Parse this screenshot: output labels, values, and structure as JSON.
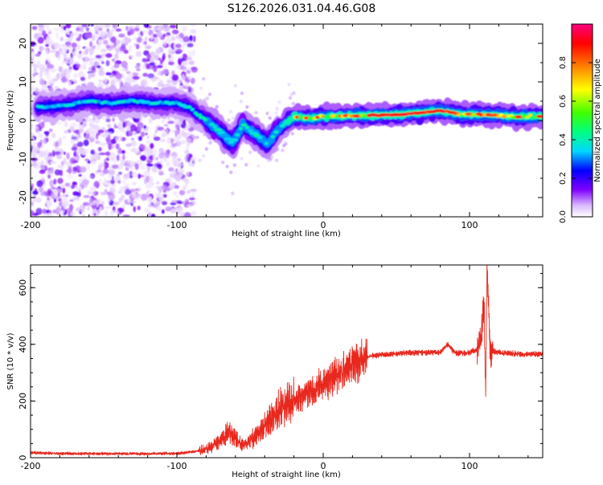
{
  "figure": {
    "title": "S126.2026.031.04.46.G08"
  },
  "chart_data": [
    {
      "type": "heatmap",
      "title": "S126.2026.031.04.46.G08",
      "xlabel": "Height of straight line (km)",
      "ylabel": "Frequency (Hz)",
      "xlim": [
        -200,
        150
      ],
      "ylim": [
        -25,
        25
      ],
      "xticks": [
        -200,
        -100,
        0,
        100
      ],
      "yticks": [
        -20,
        -10,
        0,
        10,
        20
      ],
      "colorbar": {
        "label": "Normalized spectral amplitude",
        "range": [
          0,
          1
        ],
        "ticks": [
          "0.0",
          "0.2",
          "0.4",
          "0.6",
          "0.8"
        ],
        "colors": [
          "#ffffff",
          "#d8b8ff",
          "#8000ff",
          "#0000ff",
          "#00d8ff",
          "#00ff80",
          "#40ff00",
          "#ffff00",
          "#ff8000",
          "#ff0000",
          "#ff0080"
        ]
      },
      "dominant_frequency_trace": [
        {
          "x": -190,
          "y": 3.5
        },
        {
          "x": -175,
          "y": 4.0
        },
        {
          "x": -160,
          "y": 5.0
        },
        {
          "x": -145,
          "y": 4.5
        },
        {
          "x": -130,
          "y": 5.0
        },
        {
          "x": -115,
          "y": 4.5
        },
        {
          "x": -100,
          "y": 4.5
        },
        {
          "x": -90,
          "y": 3.0
        },
        {
          "x": -80,
          "y": 0.0
        },
        {
          "x": -70,
          "y": -3.0
        },
        {
          "x": -62,
          "y": -6.0
        },
        {
          "x": -55,
          "y": -1.0
        },
        {
          "x": -45,
          "y": -4.0
        },
        {
          "x": -38,
          "y": -6.0
        },
        {
          "x": -30,
          "y": -2.0
        },
        {
          "x": -20,
          "y": 1.0
        },
        {
          "x": -10,
          "y": 0.5
        },
        {
          "x": 0,
          "y": 1.0
        },
        {
          "x": 20,
          "y": 1.2
        },
        {
          "x": 50,
          "y": 1.5
        },
        {
          "x": 80,
          "y": 2.5
        },
        {
          "x": 95,
          "y": 1.5
        },
        {
          "x": 110,
          "y": 1.5
        },
        {
          "x": 130,
          "y": 1.0
        },
        {
          "x": 150,
          "y": 1.0
        }
      ]
    },
    {
      "type": "line",
      "xlabel": "Height of straight line (km)",
      "ylabel": "SNR (10 * v/v)",
      "xlim": [
        -200,
        150
      ],
      "ylim": [
        0,
        680
      ],
      "xticks": [
        -200,
        -100,
        0,
        100
      ],
      "yticks": [
        0,
        200,
        400,
        600
      ],
      "series": [
        {
          "name": "SNR",
          "color": "#e8281e",
          "points": [
            {
              "x": -200,
              "y": 18
            },
            {
              "x": -180,
              "y": 15
            },
            {
              "x": -160,
              "y": 14
            },
            {
              "x": -140,
              "y": 14
            },
            {
              "x": -120,
              "y": 14
            },
            {
              "x": -100,
              "y": 15
            },
            {
              "x": -90,
              "y": 20
            },
            {
              "x": -80,
              "y": 30
            },
            {
              "x": -70,
              "y": 60
            },
            {
              "x": -65,
              "y": 90
            },
            {
              "x": -60,
              "y": 70
            },
            {
              "x": -55,
              "y": 40
            },
            {
              "x": -50,
              "y": 60
            },
            {
              "x": -40,
              "y": 110
            },
            {
              "x": -30,
              "y": 170
            },
            {
              "x": -20,
              "y": 200
            },
            {
              "x": -10,
              "y": 230
            },
            {
              "x": 0,
              "y": 260
            },
            {
              "x": 10,
              "y": 290
            },
            {
              "x": 20,
              "y": 330
            },
            {
              "x": 30,
              "y": 355
            },
            {
              "x": 40,
              "y": 365
            },
            {
              "x": 60,
              "y": 370
            },
            {
              "x": 80,
              "y": 372
            },
            {
              "x": 85,
              "y": 400
            },
            {
              "x": 90,
              "y": 370
            },
            {
              "x": 100,
              "y": 370
            },
            {
              "x": 105,
              "y": 380
            },
            {
              "x": 108,
              "y": 420
            },
            {
              "x": 110,
              "y": 550
            },
            {
              "x": 111,
              "y": 200
            },
            {
              "x": 112,
              "y": 680
            },
            {
              "x": 114,
              "y": 380
            },
            {
              "x": 120,
              "y": 370
            },
            {
              "x": 135,
              "y": 365
            },
            {
              "x": 150,
              "y": 365
            }
          ]
        }
      ]
    }
  ]
}
